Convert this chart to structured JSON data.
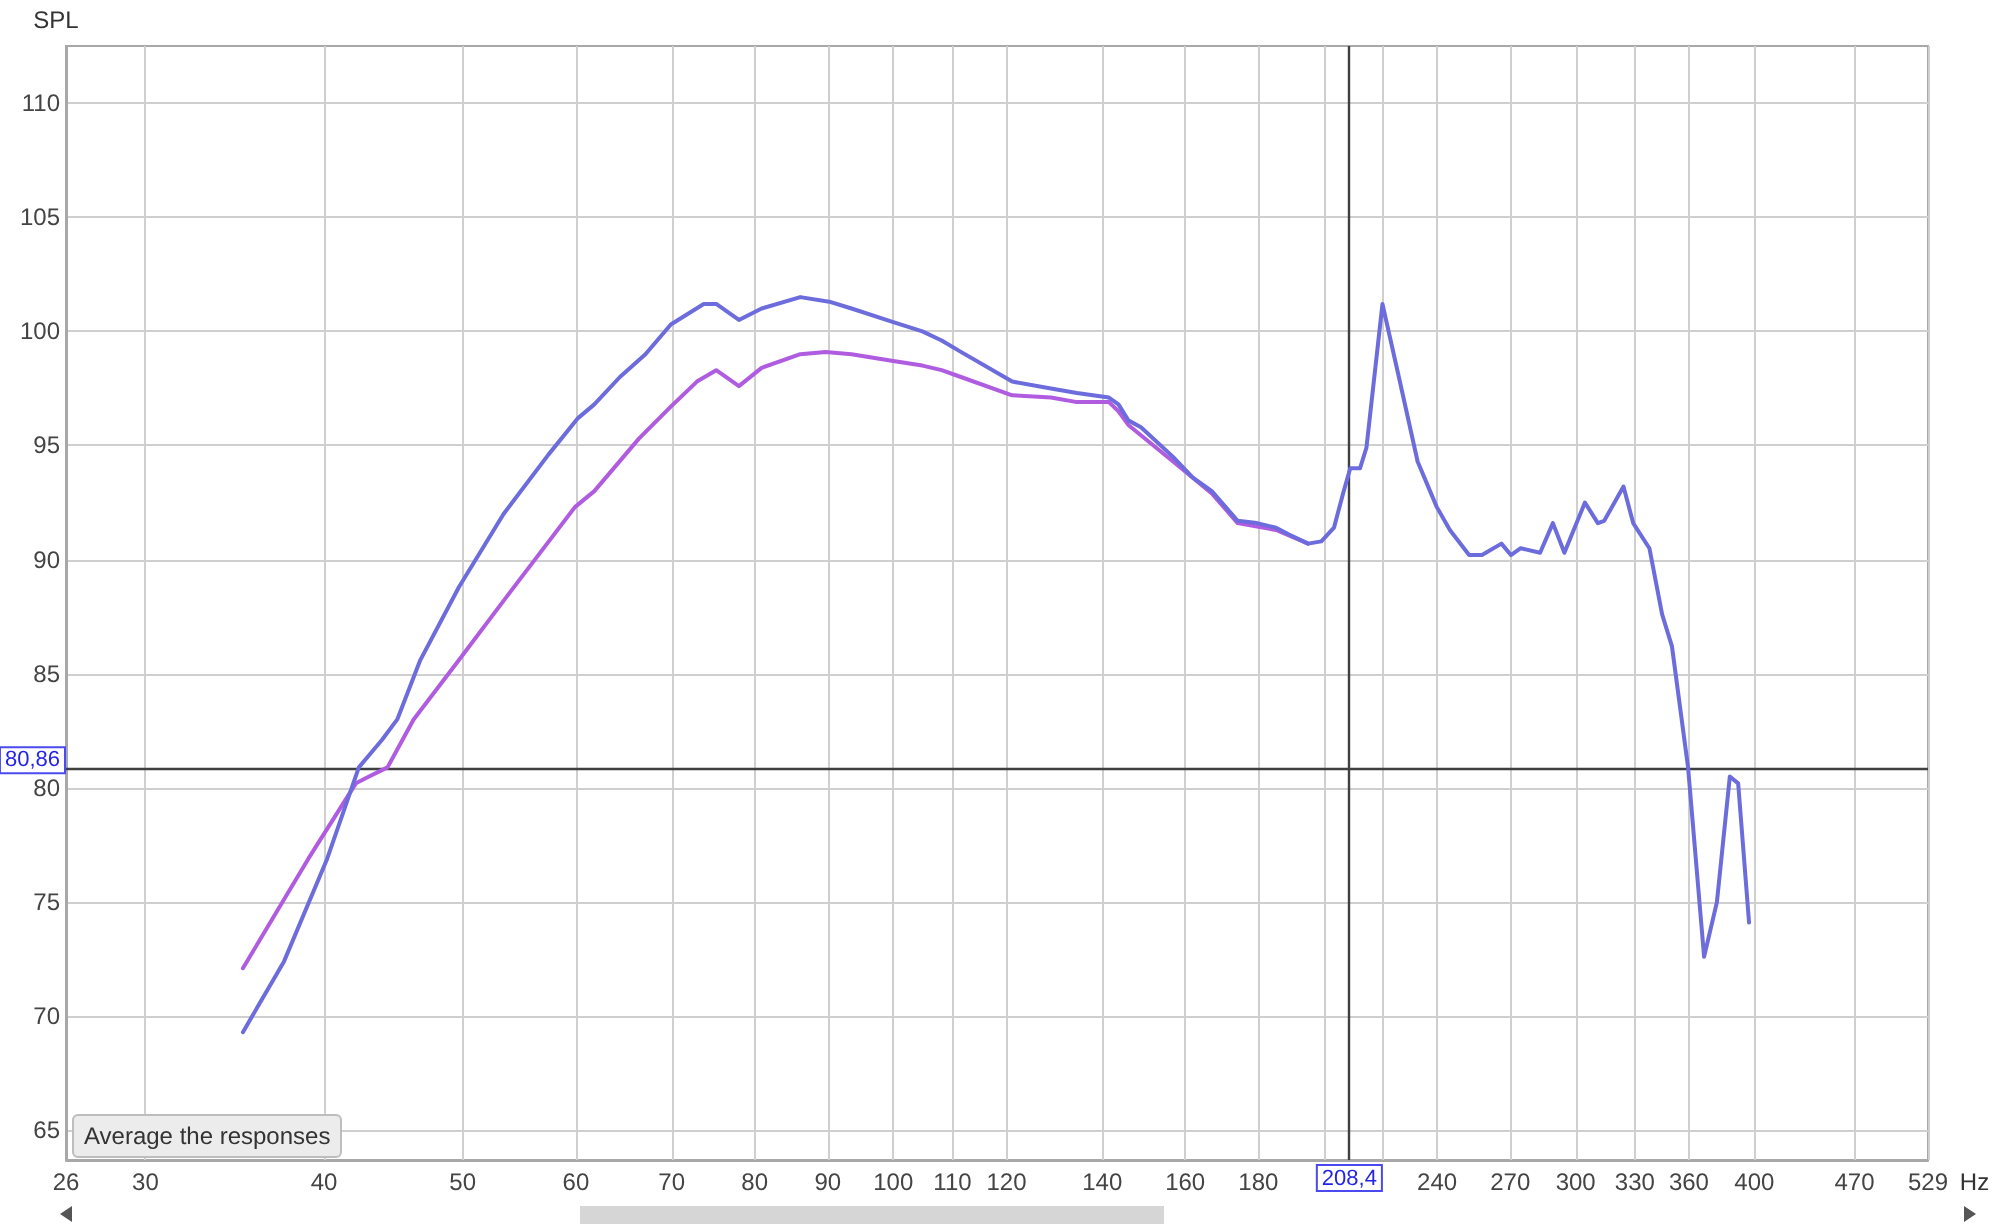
{
  "chart_data": {
    "type": "line",
    "xlabel": "Hz",
    "ylabel": "SPL",
    "annotations": [
      "Average the responses"
    ],
    "log": "x",
    "grid": true,
    "marker": "none",
    "line_style": "solid",
    "xlim": [
      26.4,
      529
    ],
    "xticks": [
      {
        "value": 26.4,
        "label": "26"
      },
      30,
      40,
      50,
      60,
      70,
      80,
      90,
      100,
      110,
      120,
      140,
      160,
      180,
      {
        "value": 200,
        "label": null
      },
      {
        "value": 220,
        "label": null
      },
      240,
      270,
      300,
      330,
      360,
      400,
      470,
      529
    ],
    "ylim": [
      63.7,
      112.5
    ],
    "yticks": [
      65,
      70,
      75,
      80,
      85,
      90,
      95,
      100,
      105,
      110
    ],
    "ref_lines": [
      {
        "axis": "x",
        "value": 208.4,
        "label": "208,4",
        "color": "#404040"
      },
      {
        "axis": "y",
        "value": 80.86,
        "label": "80,86",
        "color": "#404040"
      }
    ],
    "series": [
      {
        "color": "#6c6cdc",
        "x": [
          35.1,
          37.5,
          40.2,
          42.3,
          43.9,
          45.0,
          46.7,
          49.7,
          53.4,
          57.4,
          60.2,
          61.8,
          64.4,
          67.1,
          69.9,
          73.7,
          75.2,
          78.0,
          80.9,
          86.1,
          90.2,
          93.5,
          100,
          104.8,
          108.1,
          111.5,
          121.1,
          128.9,
          134.4,
          141.5,
          143.7,
          146.0,
          149.0,
          156.9,
          161.9,
          167.0,
          174.1,
          179.6,
          185.2,
          189.1,
          195.0,
          199.2,
          203.3,
          206.5,
          208.7,
          212.0,
          214.2,
          219.8,
          225.5,
          232.6,
          239.9,
          245.0,
          252.7,
          258.0,
          266.2,
          270.3,
          274.6,
          283.3,
          289.2,
          294.6,
          304.5,
          310.9,
          314.1,
          324.0,
          329.1,
          337.8,
          344.8,
          350.3,
          359.5,
          368.9,
          376.6,
          384.5,
          389.7,
          396.6
        ],
        "values": [
          69.3,
          72.4,
          76.9,
          80.9,
          82.1,
          83.0,
          85.6,
          88.8,
          92.0,
          94.6,
          96.2,
          96.8,
          98.0,
          99.0,
          100.3,
          101.2,
          101.2,
          100.5,
          101.0,
          101.5,
          101.3,
          101.0,
          100.4,
          100.0,
          99.6,
          99.1,
          97.8,
          97.5,
          97.3,
          97.1,
          96.8,
          96.1,
          95.8,
          94.5,
          93.6,
          93.0,
          91.7,
          91.6,
          91.4,
          91.1,
          90.7,
          90.8,
          91.4,
          93.0,
          94.0,
          94.0,
          94.9,
          101.2,
          98.1,
          94.3,
          92.3,
          91.3,
          90.2,
          90.2,
          90.7,
          90.2,
          90.5,
          90.3,
          91.6,
          90.3,
          92.5,
          91.6,
          91.7,
          93.2,
          91.6,
          90.5,
          87.6,
          86.2,
          80.9,
          72.6,
          75.0,
          80.5,
          80.2,
          74.1
        ]
      },
      {
        "color": "#b05ce0",
        "x": [
          35.1,
          39.0,
          42.1,
          43.0,
          44.3,
          46.2,
          49.7,
          54.0,
          59.9,
          61.8,
          66.4,
          69.9,
          72.9,
          75.2,
          78.0,
          80.9,
          86.1,
          89.7,
          93.5,
          100,
          104.8,
          108.1,
          111.5,
          121.1,
          128.9,
          134.4,
          141.5,
          143.7,
          146.0,
          156.9,
          167.0,
          174.1,
          185.2,
          195.0
        ],
        "values": [
          72.1,
          76.9,
          80.2,
          80.5,
          80.9,
          83.0,
          85.6,
          88.6,
          92.3,
          93.0,
          95.3,
          96.7,
          97.8,
          98.3,
          97.6,
          98.4,
          99.0,
          99.1,
          99.0,
          98.7,
          98.5,
          98.3,
          98.0,
          97.2,
          97.1,
          96.9,
          96.9,
          96.5,
          95.9,
          94.3,
          92.9,
          91.6,
          91.3,
          90.7
        ]
      }
    ]
  }
}
